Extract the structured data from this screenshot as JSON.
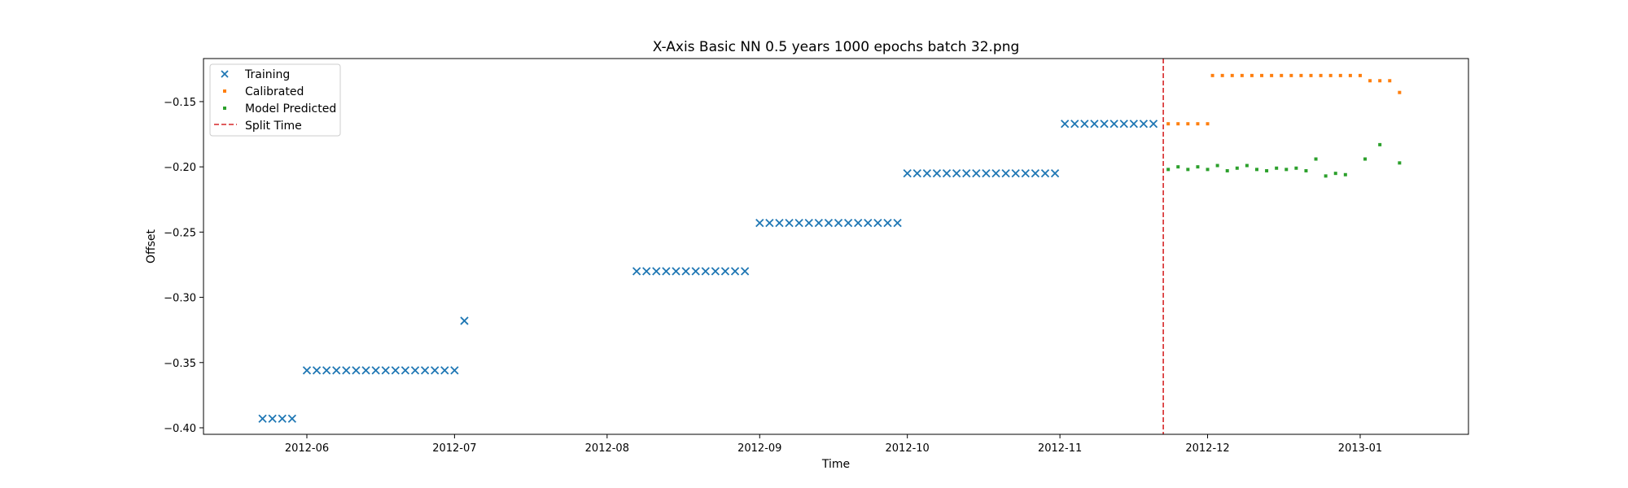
{
  "chart_data": {
    "type": "scatter",
    "title": "X-Axis Basic NN 0.5 years 1000 epochs batch 32.png",
    "xlabel": "Time",
    "ylabel": "Offset",
    "xlim": [
      "2012-05-11",
      "2013-01-23"
    ],
    "ylim": [
      -0.405,
      -0.117
    ],
    "x_ticks": [
      {
        "date": "2012-06-01",
        "label": "2012-06"
      },
      {
        "date": "2012-07-01",
        "label": "2012-07"
      },
      {
        "date": "2012-08-01",
        "label": "2012-08"
      },
      {
        "date": "2012-09-01",
        "label": "2012-09"
      },
      {
        "date": "2012-10-01",
        "label": "2012-10"
      },
      {
        "date": "2012-11-01",
        "label": "2012-11"
      },
      {
        "date": "2012-12-01",
        "label": "2012-12"
      },
      {
        "date": "2013-01-01",
        "label": "2013-01"
      }
    ],
    "y_ticks": [
      {
        "value": -0.15,
        "label": "−0.15"
      },
      {
        "value": -0.2,
        "label": "−0.20"
      },
      {
        "value": -0.25,
        "label": "−0.25"
      },
      {
        "value": -0.3,
        "label": "−0.30"
      },
      {
        "value": -0.35,
        "label": "−0.35"
      },
      {
        "value": -0.4,
        "label": "−0.40"
      }
    ],
    "grid": false,
    "legend_position": "upper-left",
    "split_time": "2012-11-22",
    "series": [
      {
        "name": "Training",
        "marker": "x",
        "color": "#1f77b4",
        "points": [
          [
            "2012-05-23",
            -0.393
          ],
          [
            "2012-05-25",
            -0.393
          ],
          [
            "2012-05-27",
            -0.393
          ],
          [
            "2012-05-29",
            -0.393
          ],
          [
            "2012-06-01",
            -0.356
          ],
          [
            "2012-06-03",
            -0.356
          ],
          [
            "2012-06-05",
            -0.356
          ],
          [
            "2012-06-07",
            -0.356
          ],
          [
            "2012-06-09",
            -0.356
          ],
          [
            "2012-06-11",
            -0.356
          ],
          [
            "2012-06-13",
            -0.356
          ],
          [
            "2012-06-15",
            -0.356
          ],
          [
            "2012-06-17",
            -0.356
          ],
          [
            "2012-06-19",
            -0.356
          ],
          [
            "2012-06-21",
            -0.356
          ],
          [
            "2012-06-23",
            -0.356
          ],
          [
            "2012-06-25",
            -0.356
          ],
          [
            "2012-06-27",
            -0.356
          ],
          [
            "2012-06-29",
            -0.356
          ],
          [
            "2012-07-01",
            -0.356
          ],
          [
            "2012-07-03",
            -0.318
          ],
          [
            "2012-08-07",
            -0.28
          ],
          [
            "2012-08-09",
            -0.28
          ],
          [
            "2012-08-11",
            -0.28
          ],
          [
            "2012-08-13",
            -0.28
          ],
          [
            "2012-08-15",
            -0.28
          ],
          [
            "2012-08-17",
            -0.28
          ],
          [
            "2012-08-19",
            -0.28
          ],
          [
            "2012-08-21",
            -0.28
          ],
          [
            "2012-08-23",
            -0.28
          ],
          [
            "2012-08-25",
            -0.28
          ],
          [
            "2012-08-27",
            -0.28
          ],
          [
            "2012-08-29",
            -0.28
          ],
          [
            "2012-09-01",
            -0.243
          ],
          [
            "2012-09-03",
            -0.243
          ],
          [
            "2012-09-05",
            -0.243
          ],
          [
            "2012-09-07",
            -0.243
          ],
          [
            "2012-09-09",
            -0.243
          ],
          [
            "2012-09-11",
            -0.243
          ],
          [
            "2012-09-13",
            -0.243
          ],
          [
            "2012-09-15",
            -0.243
          ],
          [
            "2012-09-17",
            -0.243
          ],
          [
            "2012-09-19",
            -0.243
          ],
          [
            "2012-09-21",
            -0.243
          ],
          [
            "2012-09-23",
            -0.243
          ],
          [
            "2012-09-25",
            -0.243
          ],
          [
            "2012-09-27",
            -0.243
          ],
          [
            "2012-09-29",
            -0.243
          ],
          [
            "2012-10-01",
            -0.205
          ],
          [
            "2012-10-03",
            -0.205
          ],
          [
            "2012-10-05",
            -0.205
          ],
          [
            "2012-10-07",
            -0.205
          ],
          [
            "2012-10-09",
            -0.205
          ],
          [
            "2012-10-11",
            -0.205
          ],
          [
            "2012-10-13",
            -0.205
          ],
          [
            "2012-10-15",
            -0.205
          ],
          [
            "2012-10-17",
            -0.205
          ],
          [
            "2012-10-19",
            -0.205
          ],
          [
            "2012-10-21",
            -0.205
          ],
          [
            "2012-10-23",
            -0.205
          ],
          [
            "2012-10-25",
            -0.205
          ],
          [
            "2012-10-27",
            -0.205
          ],
          [
            "2012-10-29",
            -0.205
          ],
          [
            "2012-10-31",
            -0.205
          ],
          [
            "2012-11-02",
            -0.167
          ],
          [
            "2012-11-04",
            -0.167
          ],
          [
            "2012-11-06",
            -0.167
          ],
          [
            "2012-11-08",
            -0.167
          ],
          [
            "2012-11-10",
            -0.167
          ],
          [
            "2012-11-12",
            -0.167
          ],
          [
            "2012-11-14",
            -0.167
          ],
          [
            "2012-11-16",
            -0.167
          ],
          [
            "2012-11-18",
            -0.167
          ],
          [
            "2012-11-20",
            -0.167
          ]
        ]
      },
      {
        "name": "Calibrated",
        "marker": "square",
        "color": "#ff7f0e",
        "points": [
          [
            "2012-11-23",
            -0.167
          ],
          [
            "2012-11-25",
            -0.167
          ],
          [
            "2012-11-27",
            -0.167
          ],
          [
            "2012-11-29",
            -0.167
          ],
          [
            "2012-12-01",
            -0.167
          ],
          [
            "2012-12-02",
            -0.13
          ],
          [
            "2012-12-04",
            -0.13
          ],
          [
            "2012-12-06",
            -0.13
          ],
          [
            "2012-12-08",
            -0.13
          ],
          [
            "2012-12-10",
            -0.13
          ],
          [
            "2012-12-12",
            -0.13
          ],
          [
            "2012-12-14",
            -0.13
          ],
          [
            "2012-12-16",
            -0.13
          ],
          [
            "2012-12-18",
            -0.13
          ],
          [
            "2012-12-20",
            -0.13
          ],
          [
            "2012-12-22",
            -0.13
          ],
          [
            "2012-12-24",
            -0.13
          ],
          [
            "2012-12-26",
            -0.13
          ],
          [
            "2012-12-28",
            -0.13
          ],
          [
            "2012-12-30",
            -0.13
          ],
          [
            "2013-01-01",
            -0.13
          ],
          [
            "2013-01-03",
            -0.134
          ],
          [
            "2013-01-05",
            -0.134
          ],
          [
            "2013-01-07",
            -0.134
          ],
          [
            "2013-01-09",
            -0.143
          ]
        ]
      },
      {
        "name": "Model Predicted",
        "marker": "square",
        "color": "#2ca02c",
        "points": [
          [
            "2012-11-23",
            -0.202
          ],
          [
            "2012-11-25",
            -0.2
          ],
          [
            "2012-11-27",
            -0.202
          ],
          [
            "2012-11-29",
            -0.2
          ],
          [
            "2012-12-01",
            -0.202
          ],
          [
            "2012-12-03",
            -0.199
          ],
          [
            "2012-12-05",
            -0.203
          ],
          [
            "2012-12-07",
            -0.201
          ],
          [
            "2012-12-09",
            -0.199
          ],
          [
            "2012-12-11",
            -0.202
          ],
          [
            "2012-12-13",
            -0.203
          ],
          [
            "2012-12-15",
            -0.201
          ],
          [
            "2012-12-17",
            -0.202
          ],
          [
            "2012-12-19",
            -0.201
          ],
          [
            "2012-12-21",
            -0.203
          ],
          [
            "2012-12-23",
            -0.194
          ],
          [
            "2012-12-25",
            -0.207
          ],
          [
            "2012-12-27",
            -0.205
          ],
          [
            "2012-12-29",
            -0.206
          ],
          [
            "2013-01-02",
            -0.194
          ],
          [
            "2013-01-05",
            -0.183
          ],
          [
            "2013-01-09",
            -0.197
          ]
        ]
      }
    ],
    "legend_split_label": "Split Time",
    "split_color": "#d62728"
  }
}
